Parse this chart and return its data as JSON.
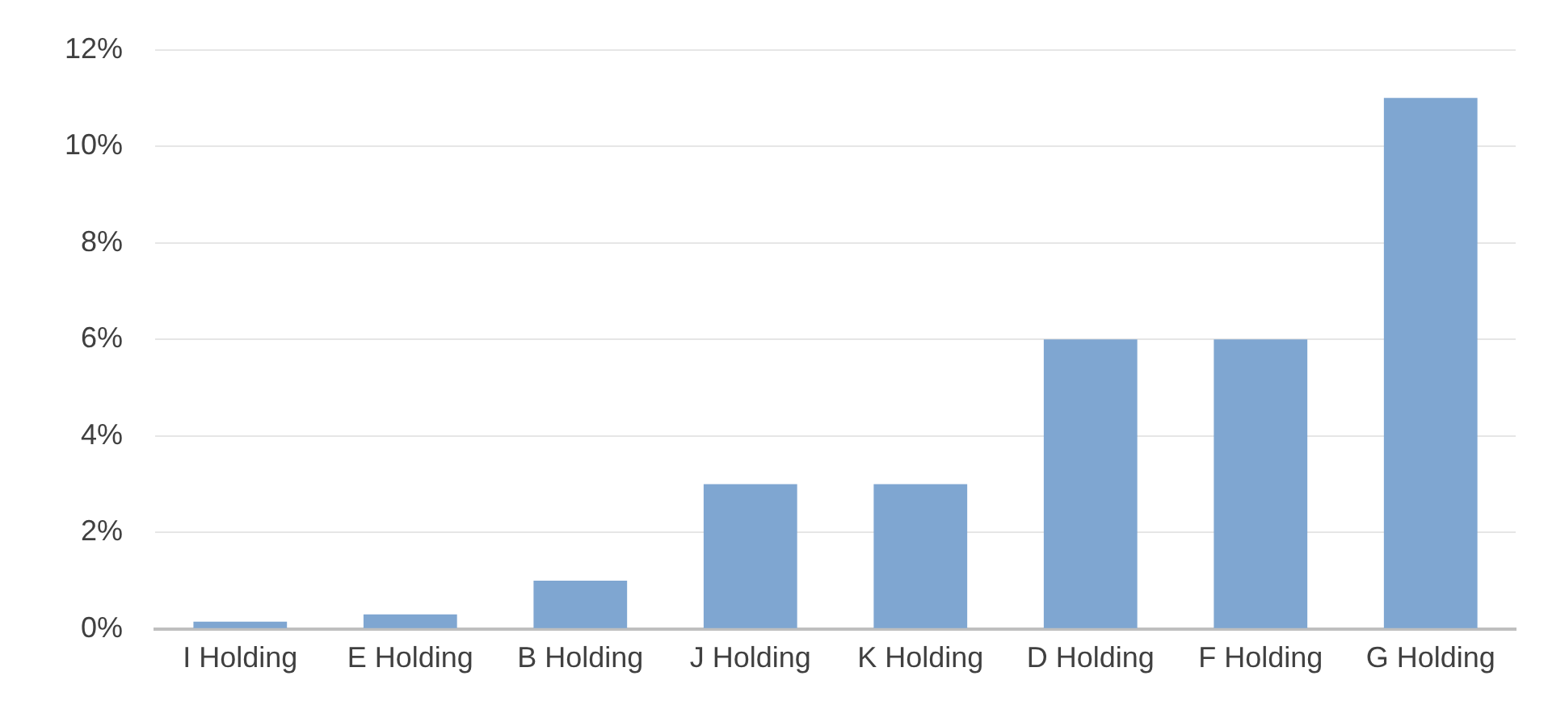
{
  "chart_data": {
    "type": "bar",
    "categories": [
      "I Holding",
      "E Holding",
      "B Holding",
      "J Holding",
      "K Holding",
      "D Holding",
      "F Holding",
      "G Holding"
    ],
    "values": [
      0.15,
      0.3,
      1,
      3,
      3,
      6,
      6,
      11
    ],
    "color": "#7fa6d1",
    "ylim": [
      0,
      12
    ],
    "yticks": [
      {
        "value": 0,
        "label": "0%"
      },
      {
        "value": 2,
        "label": "2%"
      },
      {
        "value": 4,
        "label": "4%"
      },
      {
        "value": 6,
        "label": "6%"
      },
      {
        "value": 8,
        "label": "8%"
      },
      {
        "value": 10,
        "label": "10%"
      },
      {
        "value": 12,
        "label": "12%"
      }
    ],
    "grid": "y"
  }
}
